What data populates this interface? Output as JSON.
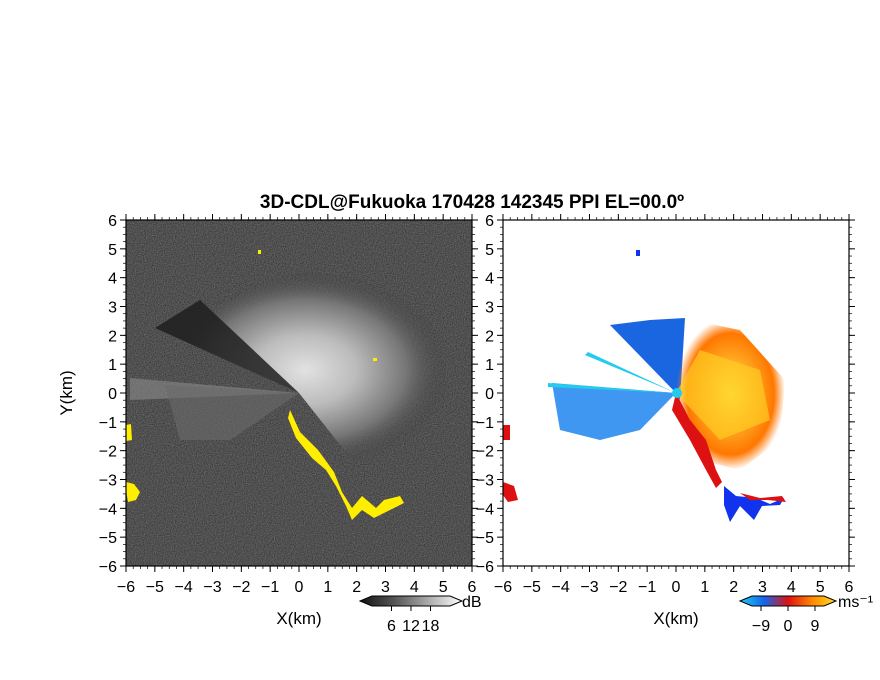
{
  "title": "3D-CDL@Fukuoka 170428 142345 PPI EL=00.0º",
  "chart_data": [
    {
      "type": "heatmap",
      "panel": "reflectivity",
      "xlabel": "X(km)",
      "ylabel": "Y(km)",
      "xlim": [
        -6,
        6
      ],
      "ylim": [
        -6,
        6
      ],
      "xticks": [
        "−6",
        "−5",
        "−4",
        "−3",
        "−2",
        "−1",
        "0",
        "1",
        "2",
        "3",
        "4",
        "5",
        "6"
      ],
      "yticks": [
        "−6",
        "−5",
        "−4",
        "−3",
        "−2",
        "−1",
        "0",
        "1",
        "2",
        "3",
        "4",
        "5",
        "6"
      ],
      "colorbar": {
        "label": "dB",
        "ticks": [
          "6",
          "12",
          "18"
        ],
        "values": [
          6,
          12,
          18
        ],
        "range": [
          0,
          24
        ]
      },
      "background_color": "#2a2a2a",
      "highlight_color": "#ffee00"
    },
    {
      "type": "heatmap",
      "panel": "doppler_velocity",
      "xlabel": "X(km)",
      "xlim": [
        -6,
        6
      ],
      "ylim": [
        -6,
        6
      ],
      "xticks": [
        "−6",
        "−5",
        "−4",
        "−3",
        "−2",
        "−1",
        "0",
        "1",
        "2",
        "3",
        "4",
        "5",
        "6"
      ],
      "yticks": [
        "−6",
        "−5",
        "−4",
        "−3",
        "−2",
        "−1",
        "0",
        "1",
        "2",
        "3",
        "4",
        "5",
        "6"
      ],
      "colorbar": {
        "label": "ms⁻¹",
        "ticks": [
          "−9",
          "0",
          "9"
        ],
        "values": [
          -9,
          0,
          9
        ],
        "range": [
          -12,
          12
        ],
        "colors": [
          "#22ccee",
          "#1166ee",
          "#dd1111",
          "#ff8800",
          "#ffdd22"
        ]
      }
    }
  ]
}
